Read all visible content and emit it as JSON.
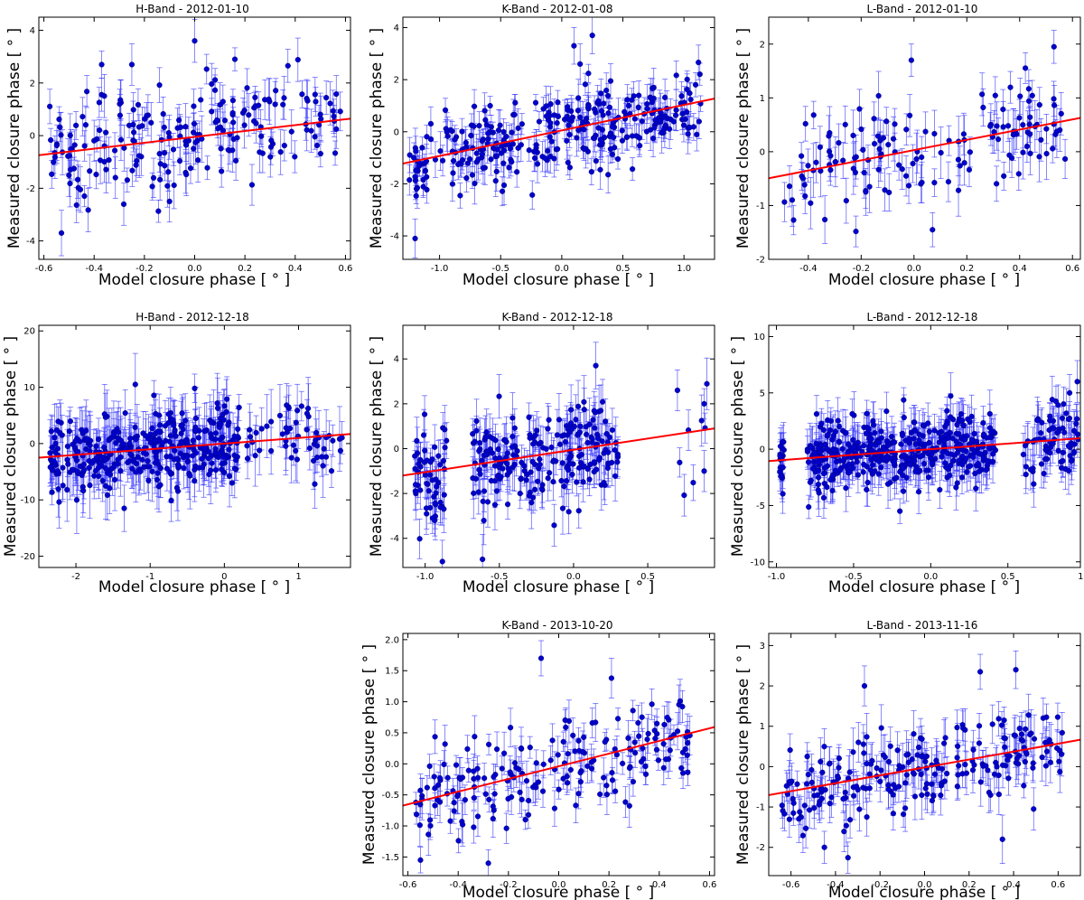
{
  "colors": {
    "points": "#0000cc",
    "errorbars": "#3a3aff",
    "fit_line": "#ff0000",
    "axes": "#000000"
  },
  "chart_data": [
    {
      "id": "h-2012-01-10",
      "type": "scatter",
      "title": "H-Band - 2012-01-10",
      "xlabel": "Model closure phase [ ° ]",
      "ylabel": "Measured closure phase [ ° ]",
      "xlim": [
        -0.62,
        0.62
      ],
      "ylim": [
        -4.7,
        4.5
      ],
      "xticks": [
        -0.6,
        -0.4,
        -0.2,
        0.0,
        0.2,
        0.4,
        0.6
      ],
      "xtick_labels": [
        "-0.6",
        "-0.4",
        "-0.2",
        "0.0",
        "0.2",
        "0.4",
        "0.6"
      ],
      "yticks": [
        -4,
        -2,
        0,
        2,
        4
      ],
      "ytick_labels": [
        "-4",
        "-2",
        "0",
        "2",
        "4"
      ],
      "fit": {
        "slope": 1.12,
        "intercept": -0.05
      },
      "n_points": 200,
      "scatter_sd": 1.0,
      "err_range": [
        0.4,
        0.9
      ],
      "x_clusters": [
        [
          -0.58,
          0.58,
          1.0
        ]
      ],
      "outliers": [
        [
          0.0,
          3.6
        ],
        [
          -0.37,
          2.7
        ],
        [
          -0.25,
          2.7
        ],
        [
          0.16,
          2.9
        ],
        [
          -0.53,
          -3.7
        ],
        [
          -0.1,
          -2.5
        ]
      ]
    },
    {
      "id": "k-2012-01-08",
      "type": "scatter",
      "title": "K-Band - 2012-01-08",
      "xlabel": "Model closure phase [ ° ]",
      "ylabel": "Measured closure phase [ ° ]",
      "xlim": [
        -1.3,
        1.25
      ],
      "ylim": [
        -4.9,
        4.4
      ],
      "xticks": [
        -1.0,
        -0.5,
        0.0,
        0.5,
        1.0
      ],
      "xtick_labels": [
        "-1.0",
        "-0.5",
        "0.0",
        "0.5",
        "1.0"
      ],
      "yticks": [
        -4,
        -2,
        0,
        2,
        4
      ],
      "ytick_labels": [
        "-4",
        "-2",
        "0",
        "2",
        "4"
      ],
      "fit": {
        "slope": 0.98,
        "intercept": 0.05
      },
      "n_points": 320,
      "scatter_sd": 0.9,
      "err_range": [
        0.3,
        0.8
      ],
      "x_clusters": [
        [
          -1.25,
          1.15,
          1.0
        ]
      ],
      "outliers": [
        [
          0.25,
          3.7
        ],
        [
          0.1,
          3.3
        ],
        [
          -1.2,
          -4.1
        ],
        [
          0.15,
          2.6
        ]
      ]
    },
    {
      "id": "l-2012-01-10",
      "type": "scatter",
      "title": "L-Band - 2012-01-10",
      "xlabel": "Model closure phase [ ° ]",
      "ylabel": "Measured closure phase [ ° ]",
      "xlim": [
        -0.55,
        0.63
      ],
      "ylim": [
        -2.0,
        2.5
      ],
      "xticks": [
        -0.4,
        -0.2,
        0.0,
        0.2,
        0.4,
        0.6
      ],
      "xtick_labels": [
        "-0.4",
        "-0.2",
        "0.0",
        "0.2",
        "0.4",
        "0.6"
      ],
      "yticks": [
        -2,
        -1,
        0,
        1,
        2
      ],
      "ytick_labels": [
        "-2",
        "-1",
        "0",
        "1",
        "2"
      ],
      "fit": {
        "slope": 0.95,
        "intercept": 0.03
      },
      "n_points": 140,
      "scatter_sd": 0.55,
      "err_range": [
        0.25,
        0.5
      ],
      "x_clusters": [
        [
          -0.5,
          0.6,
          1.0
        ]
      ],
      "outliers": [
        [
          0.53,
          1.95
        ],
        [
          -0.01,
          1.7
        ],
        [
          0.07,
          -1.45
        ]
      ]
    },
    {
      "id": "h-2012-12-18",
      "type": "scatter",
      "title": "H-Band - 2012-12-18",
      "xlabel": "Model closure phase [ ° ]",
      "ylabel": "Measured closure phase [ ° ]",
      "xlim": [
        -2.5,
        1.7
      ],
      "ylim": [
        -22.0,
        21.0
      ],
      "xticks": [
        -2,
        -1,
        0,
        1
      ],
      "xtick_labels": [
        "-2",
        "-1",
        "0",
        "1"
      ],
      "yticks": [
        -20,
        -10,
        0,
        10,
        20
      ],
      "ytick_labels": [
        "-20",
        "-10",
        "0",
        "10",
        "20"
      ],
      "fit": {
        "slope": 1.0,
        "intercept": 0.0
      },
      "n_points": 420,
      "scatter_sd": 3.6,
      "err_range": [
        2.0,
        6.0
      ],
      "x_clusters": [
        [
          -2.35,
          0.2,
          0.88
        ],
        [
          0.3,
          1.6,
          0.12
        ]
      ],
      "outliers": [
        [
          -1.2,
          10.5
        ],
        [
          -1.35,
          -11.5
        ],
        [
          -0.4,
          9.8
        ]
      ]
    },
    {
      "id": "k-2012-12-18",
      "type": "scatter",
      "title": "K-Band - 2012-12-18",
      "xlabel": "Model closure phase [ ° ]",
      "ylabel": "Measured closure phase [ ° ]",
      "xlim": [
        -1.15,
        0.95
      ],
      "ylim": [
        -5.3,
        5.5
      ],
      "xticks": [
        -1.0,
        -0.5,
        0.0,
        0.5
      ],
      "xtick_labels": [
        "-1.0",
        "-0.5",
        "0.0",
        "0.5"
      ],
      "yticks": [
        -4,
        -2,
        0,
        2,
        4
      ],
      "ytick_labels": [
        "-4",
        "-2",
        "0",
        "2",
        "4"
      ],
      "fit": {
        "slope": 1.0,
        "intercept": -0.05
      },
      "n_points": 280,
      "scatter_sd": 1.3,
      "err_range": [
        0.6,
        1.2
      ],
      "x_clusters": [
        [
          -1.07,
          -0.85,
          0.2
        ],
        [
          -0.68,
          0.3,
          0.78
        ],
        [
          0.66,
          0.9,
          0.02
        ]
      ],
      "outliers": [
        [
          0.15,
          3.7
        ],
        [
          0.7,
          2.6
        ],
        [
          0.88,
          2.0
        ],
        [
          0.88,
          -1.0
        ],
        [
          -0.95,
          -3.1
        ]
      ]
    },
    {
      "id": "l-2012-12-18",
      "type": "scatter",
      "title": "L-Band - 2012-12-18",
      "xlabel": "Model closure phase [ ° ]",
      "ylabel": "Measured closure phase [ ° ]",
      "xlim": [
        -1.05,
        0.97
      ],
      "ylim": [
        -10.5,
        11.0
      ],
      "xticks": [
        -1.0,
        -0.5,
        0.0,
        0.5,
        1.0
      ],
      "xtick_labels": [
        "-1.0",
        "-0.5",
        "0.0",
        "0.5",
        "1.0"
      ],
      "yticks": [
        -10,
        -5,
        0,
        5,
        10
      ],
      "ytick_labels": [
        "-10",
        "-5",
        "0",
        "5",
        "10"
      ],
      "fit": {
        "slope": 1.0,
        "intercept": 0.0
      },
      "n_points": 520,
      "scatter_sd": 1.7,
      "err_range": [
        1.0,
        2.2
      ],
      "x_clusters": [
        [
          -0.98,
          -0.95,
          0.04
        ],
        [
          -0.8,
          0.42,
          0.82
        ],
        [
          0.6,
          0.96,
          0.14
        ]
      ],
      "outliers": [
        [
          0.95,
          6.0
        ],
        [
          0.9,
          5.0
        ],
        [
          -0.2,
          -5.5
        ]
      ]
    },
    {
      "id": "k-2013-10-20",
      "type": "scatter",
      "title": "K-Band - 2013-10-20",
      "xlabel": "Model closure phase [ ° ]",
      "ylabel": "Measured closure phase [ ° ]",
      "xlim": [
        -0.62,
        0.62
      ],
      "ylim": [
        -1.8,
        2.1
      ],
      "xticks": [
        -0.6,
        -0.4,
        -0.2,
        0.0,
        0.2,
        0.4,
        0.6
      ],
      "xtick_labels": [
        "-0.6",
        "-0.4",
        "-0.2",
        "0.0",
        "0.2",
        "0.4",
        "0.6"
      ],
      "yticks": [
        -1.5,
        -1.0,
        -0.5,
        0.0,
        0.5,
        1.0,
        1.5,
        2.0
      ],
      "ytick_labels": [
        "-1.5",
        "-1.0",
        "-0.5",
        "0.0",
        "0.5",
        "1.0",
        "1.5",
        "2.0"
      ],
      "fit": {
        "slope": 1.02,
        "intercept": -0.04
      },
      "n_points": 190,
      "scatter_sd": 0.42,
      "err_range": [
        0.15,
        0.35
      ],
      "x_clusters": [
        [
          -0.58,
          0.56,
          1.0
        ]
      ],
      "outliers": [
        [
          -0.07,
          1.7
        ],
        [
          0.21,
          1.38
        ],
        [
          -0.28,
          -1.6
        ],
        [
          -0.55,
          -1.55
        ]
      ]
    },
    {
      "id": "l-2013-11-16",
      "type": "scatter",
      "title": "L-Band - 2013-11-16",
      "xlabel": "Model closure phase [ ° ]",
      "ylabel": "Measured closure phase [ ° ]",
      "xlim": [
        -0.7,
        0.7
      ],
      "ylim": [
        -2.7,
        3.3
      ],
      "xticks": [
        -0.6,
        -0.4,
        -0.2,
        0.0,
        0.2,
        0.4,
        0.6
      ],
      "xtick_labels": [
        "-0.6",
        "-0.4",
        "-0.2",
        "0.0",
        "0.2",
        "0.4",
        "0.6"
      ],
      "yticks": [
        -2,
        -1,
        0,
        1,
        2,
        3
      ],
      "ytick_labels": [
        "-2",
        "-1",
        "0",
        "1",
        "2",
        "3"
      ],
      "fit": {
        "slope": 0.98,
        "intercept": -0.02
      },
      "n_points": 230,
      "scatter_sd": 0.6,
      "err_range": [
        0.3,
        0.6
      ],
      "x_clusters": [
        [
          -0.65,
          0.62,
          1.0
        ]
      ],
      "outliers": [
        [
          -0.27,
          2.0
        ],
        [
          0.25,
          2.35
        ],
        [
          0.41,
          2.4
        ],
        [
          0.35,
          -1.8
        ],
        [
          0.49,
          -1.05
        ],
        [
          -0.45,
          -2.0
        ]
      ]
    }
  ]
}
